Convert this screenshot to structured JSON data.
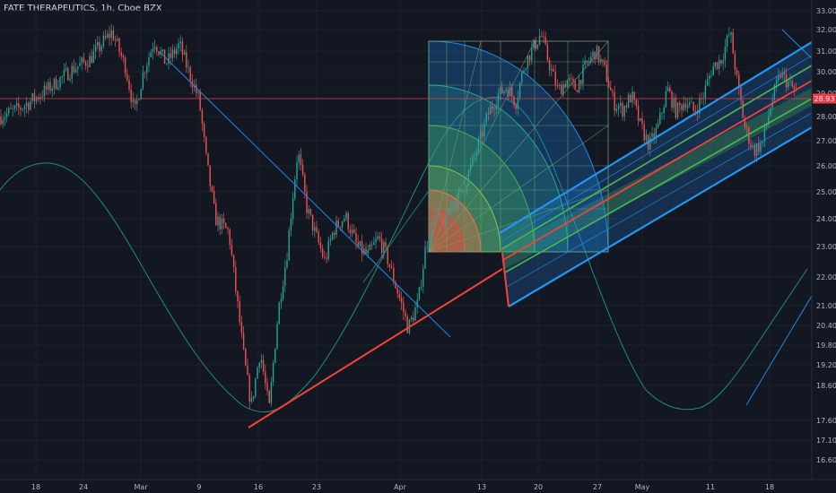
{
  "chart_data": {
    "type": "candlestick",
    "title": "FATE THERAPEUTICS, 1h, Cboe BZX",
    "y_axis": {
      "scale": "log",
      "ticks": [
        33.0,
        32.0,
        31.0,
        30.0,
        29.0,
        28.0,
        27.0,
        26.0,
        25.0,
        24.0,
        23.0,
        22.0,
        21.0,
        20.4,
        19.8,
        19.2,
        18.6,
        17.6,
        17.1,
        16.6
      ],
      "range": [
        16.3,
        33.2
      ]
    },
    "x_axis": {
      "ticks": [
        "18",
        "24",
        "Mar",
        "9",
        "16",
        "23",
        "Apr",
        "13",
        "20",
        "27",
        "May",
        "11",
        "18"
      ]
    },
    "price_line": {
      "value": "28.93",
      "color": "#f23645"
    },
    "colors": {
      "up": "#26a69a",
      "down": "#ef5350",
      "background": "#131722"
    },
    "price_path": [
      {
        "x": 0,
        "y": 28.0
      },
      {
        "x": 20,
        "y": 28.3
      },
      {
        "x": 40,
        "y": 28.8
      },
      {
        "x": 60,
        "y": 29.4
      },
      {
        "x": 80,
        "y": 30.1
      },
      {
        "x": 100,
        "y": 30.6
      },
      {
        "x": 115,
        "y": 31.4
      },
      {
        "x": 125,
        "y": 31.9
      },
      {
        "x": 140,
        "y": 30.2
      },
      {
        "x": 150,
        "y": 28.1
      },
      {
        "x": 160,
        "y": 30.0
      },
      {
        "x": 172,
        "y": 31.5
      },
      {
        "x": 185,
        "y": 30.4
      },
      {
        "x": 200,
        "y": 31.3
      },
      {
        "x": 212,
        "y": 29.8
      },
      {
        "x": 222,
        "y": 28.7
      },
      {
        "x": 230,
        "y": 26.2
      },
      {
        "x": 240,
        "y": 24.0
      },
      {
        "x": 255,
        "y": 23.5
      },
      {
        "x": 265,
        "y": 21.0
      },
      {
        "x": 272,
        "y": 19.4
      },
      {
        "x": 280,
        "y": 18.0
      },
      {
        "x": 290,
        "y": 19.6
      },
      {
        "x": 300,
        "y": 17.9
      },
      {
        "x": 310,
        "y": 20.8
      },
      {
        "x": 320,
        "y": 22.8
      },
      {
        "x": 332,
        "y": 26.6
      },
      {
        "x": 342,
        "y": 24.4
      },
      {
        "x": 352,
        "y": 23.4
      },
      {
        "x": 362,
        "y": 22.5
      },
      {
        "x": 372,
        "y": 23.6
      },
      {
        "x": 385,
        "y": 24.1
      },
      {
        "x": 398,
        "y": 23.0
      },
      {
        "x": 410,
        "y": 22.7
      },
      {
        "x": 422,
        "y": 23.3
      },
      {
        "x": 432,
        "y": 22.6
      },
      {
        "x": 442,
        "y": 21.6
      },
      {
        "x": 455,
        "y": 20.3
      },
      {
        "x": 466,
        "y": 21.1
      },
      {
        "x": 475,
        "y": 23.1
      },
      {
        "x": 485,
        "y": 24.2
      },
      {
        "x": 495,
        "y": 23.7
      },
      {
        "x": 505,
        "y": 24.6
      },
      {
        "x": 515,
        "y": 24.9
      },
      {
        "x": 525,
        "y": 26.0
      },
      {
        "x": 535,
        "y": 27.0
      },
      {
        "x": 545,
        "y": 28.2
      },
      {
        "x": 555,
        "y": 28.9
      },
      {
        "x": 565,
        "y": 29.3
      },
      {
        "x": 575,
        "y": 28.6
      },
      {
        "x": 585,
        "y": 30.4
      },
      {
        "x": 595,
        "y": 31.2
      },
      {
        "x": 603,
        "y": 31.8
      },
      {
        "x": 612,
        "y": 30.4
      },
      {
        "x": 622,
        "y": 29.1
      },
      {
        "x": 632,
        "y": 29.6
      },
      {
        "x": 642,
        "y": 29.2
      },
      {
        "x": 652,
        "y": 30.2
      },
      {
        "x": 664,
        "y": 31.0
      },
      {
        "x": 674,
        "y": 30.1
      },
      {
        "x": 684,
        "y": 28.6
      },
      {
        "x": 694,
        "y": 28.3
      },
      {
        "x": 704,
        "y": 28.9
      },
      {
        "x": 714,
        "y": 27.6
      },
      {
        "x": 724,
        "y": 26.8
      },
      {
        "x": 734,
        "y": 27.6
      },
      {
        "x": 744,
        "y": 29.2
      },
      {
        "x": 754,
        "y": 28.2
      },
      {
        "x": 764,
        "y": 28.7
      },
      {
        "x": 774,
        "y": 28.2
      },
      {
        "x": 784,
        "y": 28.9
      },
      {
        "x": 794,
        "y": 30.2
      },
      {
        "x": 804,
        "y": 30.6
      },
      {
        "x": 814,
        "y": 31.9
      },
      {
        "x": 822,
        "y": 29.5
      },
      {
        "x": 830,
        "y": 27.6
      },
      {
        "x": 840,
        "y": 26.6
      },
      {
        "x": 850,
        "y": 26.9
      },
      {
        "x": 860,
        "y": 28.6
      },
      {
        "x": 870,
        "y": 29.9
      },
      {
        "x": 880,
        "y": 29.4
      },
      {
        "x": 890,
        "y": 28.9
      }
    ]
  }
}
